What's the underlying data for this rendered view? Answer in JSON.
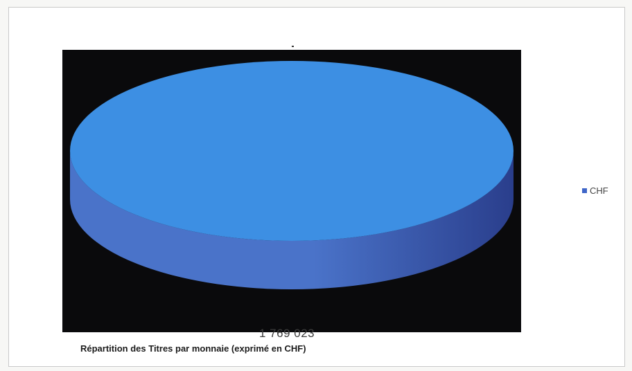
{
  "chart_data": {
    "type": "pie",
    "style": "3d",
    "title": "Répartition des Titres par monnaie (exprimé en CHF)",
    "categories": [
      "CHF"
    ],
    "values": [
      1769023
    ],
    "data_labels": [
      "1 769 023"
    ],
    "legend": {
      "placement": "right",
      "entries": [
        "CHF"
      ]
    },
    "colors": {
      "top": "#3d8fe3",
      "side_light": "#4a73c9",
      "side_dark": "#2a3e8c",
      "plot_background": "#0a0a0c",
      "legend_swatch": "#3f66c8"
    }
  }
}
